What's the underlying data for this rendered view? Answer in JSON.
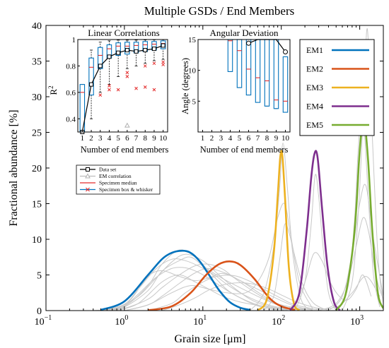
{
  "chart_data": [
    {
      "id": "main",
      "type": "line",
      "title": "Multiple GSDs / End Members",
      "xlabel": "Grain size [μm]",
      "ylabel": "Fractional abundance [%]",
      "xscale": "log",
      "xlim": [
        0.1,
        2000
      ],
      "ylim": [
        0,
        40
      ],
      "x_ticks": [
        {
          "value": 0.1,
          "base": "10",
          "exp": "−1"
        },
        {
          "value": 1,
          "base": "10",
          "exp": "0"
        },
        {
          "value": 10,
          "base": "10",
          "exp": "1"
        },
        {
          "value": 100,
          "base": "10",
          "exp": "2"
        },
        {
          "value": 1000,
          "base": "10",
          "exp": "3"
        }
      ],
      "y_ticks": [
        "0",
        "5",
        "10",
        "15",
        "20",
        "25",
        "30",
        "35",
        "40"
      ],
      "grid": false,
      "legend": {
        "position": "top-right",
        "entries": [
          "EM1",
          "EM2",
          "EM3",
          "EM4",
          "EM5"
        ]
      },
      "series": [
        {
          "name": "EM1",
          "color": "#0072bd",
          "x": [
            0.5,
            1,
            2,
            3,
            4,
            5.5,
            7,
            9,
            12,
            16,
            22,
            30,
            40
          ],
          "y": [
            0.1,
            1.3,
            5.0,
            7.2,
            8.1,
            8.4,
            8.1,
            7.0,
            5.0,
            2.9,
            1.2,
            0.4,
            0.1
          ]
        },
        {
          "name": "EM2",
          "color": "#d95319",
          "x": [
            2,
            4,
            7,
            11,
            16,
            22,
            30,
            45,
            70,
            100,
            150
          ],
          "y": [
            0.05,
            0.6,
            2.5,
            5.0,
            6.5,
            6.9,
            6.4,
            4.5,
            1.8,
            0.6,
            0.1
          ]
        },
        {
          "name": "EM3",
          "color": "#edb120",
          "x": [
            50,
            65,
            80,
            90,
            97,
            103,
            112,
            125,
            145,
            170
          ],
          "y": [
            0.05,
            1.5,
            8.0,
            16.0,
            21.5,
            21.8,
            15.5,
            6.0,
            1.0,
            0.05
          ]
        },
        {
          "name": "EM4",
          "color": "#7e2f8e",
          "x": [
            130,
            170,
            210,
            240,
            265,
            290,
            330,
            390,
            470,
            560
          ],
          "y": [
            0.05,
            2.5,
            11.0,
            18.5,
            22.0,
            21.5,
            14.5,
            6.0,
            1.2,
            0.05
          ]
        },
        {
          "name": "EM5",
          "color": "#77ac30",
          "x": [
            500,
            650,
            800,
            900,
            980,
            1060,
            1150,
            1280,
            1450,
            1700,
            2000
          ],
          "y": [
            0.05,
            2.0,
            8.0,
            14.0,
            21.0,
            25.5,
            26.5,
            21.0,
            11.0,
            2.5,
            0.3
          ]
        }
      ],
      "specimens": {
        "color": "#c8c8c8",
        "lines": [
          {
            "x": [
              0.5,
              1,
              2,
              3,
              5,
              8,
              12,
              20,
              30,
              50,
              80,
              120
            ],
            "y": [
              0.0,
              0.6,
              3.5,
              6.5,
              8.5,
              7.5,
              5.5,
              3.0,
              1.8,
              0.8,
              0.3,
              0.1
            ]
          },
          {
            "x": [
              0.4,
              0.8,
              1.5,
              2.5,
              4,
              6,
              10,
              15,
              25,
              40,
              60,
              100,
              150
            ],
            "y": [
              0.0,
              0.4,
              2.0,
              4.5,
              6.8,
              7.9,
              7.0,
              5.3,
              3.2,
              1.6,
              0.8,
              0.3,
              0.1
            ]
          },
          {
            "x": [
              0.6,
              1,
              2,
              3,
              5,
              7,
              10,
              15,
              20,
              30,
              50,
              80,
              120,
              200
            ],
            "y": [
              0.0,
              0.5,
              2.8,
              5.5,
              7.0,
              7.5,
              6.3,
              5.0,
              4.2,
              3.2,
              2.0,
              1.0,
              0.4,
              0.1
            ]
          },
          {
            "x": [
              0.5,
              1,
              1.5,
              2.5,
              4,
              6,
              9,
              14,
              22,
              35,
              60,
              100,
              200
            ],
            "y": [
              0.0,
              0.9,
              3.0,
              5.8,
              7.2,
              7.0,
              6.2,
              5.0,
              3.4,
              2.1,
              1.0,
              0.4,
              0.1
            ]
          },
          {
            "x": [
              0.7,
              1,
              2,
              3,
              5,
              8,
              12,
              18,
              25,
              40,
              70,
              100,
              150,
              250
            ],
            "y": [
              0.0,
              0.3,
              1.6,
              3.2,
              5.0,
              6.3,
              6.5,
              5.8,
              4.6,
              3.0,
              1.4,
              0.8,
              0.4,
              0.1
            ]
          },
          {
            "x": [
              0.9,
              1.3,
              2,
              3,
              5,
              8,
              12,
              18,
              30,
              50,
              80,
              130
            ],
            "y": [
              0.0,
              2.0,
              4.8,
              5.6,
              4.8,
              4.2,
              4.6,
              5.2,
              4.2,
              2.6,
              1.2,
              0.3
            ]
          },
          {
            "x": [
              1,
              2,
              3,
              5,
              8,
              12,
              20,
              30,
              50,
              70,
              100,
              150,
              250
            ],
            "y": [
              0.0,
              0.8,
              2.0,
              3.8,
              5.3,
              5.9,
              5.2,
              4.2,
              3.0,
              2.2,
              1.4,
              0.6,
              0.1
            ]
          },
          {
            "x": [
              2,
              4,
              6,
              10,
              15,
              25,
              40,
              60,
              100,
              150,
              300
            ],
            "y": [
              0.0,
              1.0,
              2.5,
              4.0,
              4.8,
              4.9,
              4.1,
              3.0,
              1.7,
              0.8,
              0.1
            ]
          },
          {
            "x": [
              0.6,
              1,
              1.5,
              2.5,
              4,
              6,
              9,
              14,
              22,
              35,
              55,
              90
            ],
            "y": [
              0.0,
              0.7,
              2.3,
              4.6,
              5.9,
              6.0,
              5.3,
              4.0,
              2.6,
              1.4,
              0.5,
              0.1
            ]
          },
          {
            "x": [
              3,
              5,
              8,
              12,
              18,
              28,
              45,
              70,
              100,
              150,
              250,
              400
            ],
            "y": [
              0.0,
              0.8,
              1.8,
              2.9,
              3.6,
              3.9,
              3.7,
              3.0,
              2.2,
              1.3,
              0.5,
              0.1
            ]
          },
          {
            "x": [
              0.8,
              1.5,
              3,
              5,
              8,
              12,
              18,
              30,
              60,
              100,
              200,
              500,
              800,
              1200,
              1800
            ],
            "y": [
              0.0,
              1.0,
              4.0,
              5.0,
              4.0,
              3.0,
              2.0,
              1.2,
              0.6,
              0.3,
              0.2,
              0.5,
              2.5,
              4.8,
              2.0
            ]
          },
          {
            "x": [
              1,
              2,
              4,
              7,
              12,
              20,
              35,
              50,
              70,
              90,
              110,
              130,
              170,
              250
            ],
            "y": [
              0.0,
              0.8,
              2.5,
              3.5,
              3.0,
              2.5,
              2.5,
              4.0,
              7.5,
              13.0,
              15.0,
              11.0,
              4.0,
              0.3
            ]
          },
          {
            "x": [
              40,
              60,
              80,
              95,
              105,
              120,
              140,
              180,
              250
            ],
            "y": [
              0.0,
              2.5,
              9.0,
              17.0,
              23.5,
              17.0,
              8.0,
              1.5,
              0.0
            ]
          },
          {
            "x": [
              60,
              80,
              95,
              110,
              125,
              150,
              190,
              260,
              400
            ],
            "y": [
              0.0,
              2.0,
              7.0,
              12.0,
              11.0,
              7.5,
              3.5,
              1.0,
              0.0
            ]
          },
          {
            "x": [
              150,
              200,
              240,
              270,
              300,
              340,
              400,
              500
            ],
            "y": [
              0.0,
              4.0,
              12.0,
              19.0,
              16.0,
              9.0,
              2.5,
              0.0
            ]
          },
          {
            "x": [
              100,
              150,
              200,
              260,
              330,
              420,
              550,
              700,
              900,
              1100,
              1400
            ],
            "y": [
              0.0,
              1.0,
              4.0,
              8.0,
              7.0,
              4.0,
              2.0,
              1.5,
              3.0,
              5.0,
              2.0
            ]
          },
          {
            "x": [
              500,
              700,
              850,
              950,
              1050,
              1150,
              1300,
              1500,
              1800
            ],
            "y": [
              0.0,
              3.0,
              12.0,
              22.0,
              28.0,
              25.0,
              15.0,
              5.0,
              0.5
            ]
          },
          {
            "x": [
              600,
              800,
              950,
              1050,
              1150,
              1250,
              1400,
              1700,
              2000
            ],
            "y": [
              0.0,
              4.0,
              13.0,
              22.0,
              32.0,
              39.5,
              28.0,
              8.0,
              1.0
            ]
          },
          {
            "x": [
              400,
              600,
              800,
              1000,
              1200,
              1500,
              2000
            ],
            "y": [
              0.0,
              2.0,
              8.0,
              15.0,
              17.5,
              10.0,
              2.0
            ]
          },
          {
            "x": [
              300,
              500,
              700,
              900,
              1100,
              1300,
              1600,
              2000
            ],
            "y": [
              0.0,
              1.0,
              4.0,
              9.0,
              13.0,
              11.0,
              5.0,
              1.5
            ]
          }
        ]
      },
      "inset_legend": [
        {
          "label": "Data set",
          "style": "data"
        },
        {
          "label": "EM correlation",
          "style": "emcorr"
        },
        {
          "label": "Specimen median",
          "style": "median"
        },
        {
          "label": "Specimen box & whisker",
          "style": "box"
        }
      ]
    },
    {
      "id": "linear-correlations",
      "type": "box",
      "title": "Linear Correlations",
      "xlabel": "Number of end members",
      "ylabel": "R²",
      "ylabel_base": "R",
      "ylabel_sup": "2",
      "xlim": [
        0.5,
        10.5
      ],
      "ylim": [
        0.3,
        1.0
      ],
      "x_ticks": [
        1,
        2,
        3,
        4,
        5,
        6,
        7,
        8,
        9,
        10
      ],
      "y_ticks": [
        {
          "value": 0.4,
          "label": "0.4"
        },
        {
          "value": 0.6,
          "label": "0.6"
        },
        {
          "value": 0.8,
          "label": "0.8"
        },
        {
          "value": 1.0,
          "label": "1"
        }
      ],
      "boxes": [
        {
          "n": 1,
          "q1": 0.28,
          "median": 0.6,
          "q3": 0.66,
          "whislo": 0.28,
          "whishi": 0.66
        },
        {
          "n": 2,
          "q1": 0.58,
          "median": 0.79,
          "q3": 0.86,
          "whislo": 0.4,
          "whishi": 0.92
        },
        {
          "n": 3,
          "q1": 0.78,
          "median": 0.88,
          "q3": 0.94,
          "whislo": 0.6,
          "whishi": 0.98
        },
        {
          "n": 4,
          "q1": 0.86,
          "median": 0.93,
          "q3": 0.96,
          "whislo": 0.66,
          "whishi": 0.99
        },
        {
          "n": 5,
          "q1": 0.88,
          "median": 0.95,
          "q3": 0.975,
          "whislo": 0.72,
          "whishi": 0.995
        },
        {
          "n": 6,
          "q1": 0.89,
          "median": 0.95,
          "q3": 0.98,
          "whislo": 0.78,
          "whishi": 0.995
        },
        {
          "n": 7,
          "q1": 0.9,
          "median": 0.955,
          "q3": 0.98,
          "whislo": 0.8,
          "whishi": 0.995
        },
        {
          "n": 8,
          "q1": 0.91,
          "median": 0.96,
          "q3": 0.985,
          "whislo": 0.82,
          "whishi": 0.997
        },
        {
          "n": 9,
          "q1": 0.92,
          "median": 0.965,
          "q3": 0.985,
          "whislo": 0.84,
          "whishi": 0.998
        },
        {
          "n": 10,
          "q1": 0.93,
          "median": 0.97,
          "q3": 0.99,
          "whislo": 0.85,
          "whishi": 0.999
        }
      ],
      "outliers": [
        {
          "x": 3,
          "y": 0.58
        },
        {
          "x": 4,
          "y": 0.65
        },
        {
          "x": 4,
          "y": 0.62
        },
        {
          "x": 5,
          "y": 0.62
        },
        {
          "x": 6,
          "y": 0.75
        },
        {
          "x": 6,
          "y": 0.72
        },
        {
          "x": 7,
          "y": 0.63
        },
        {
          "x": 8,
          "y": 0.64
        },
        {
          "x": 8,
          "y": 0.8
        },
        {
          "x": 9,
          "y": 0.62
        },
        {
          "x": 9,
          "y": 0.82
        },
        {
          "x": 10,
          "y": 0.83
        },
        {
          "x": 10,
          "y": 0.81
        }
      ],
      "data_set": {
        "x": [
          1,
          2,
          3,
          4,
          5,
          6,
          7,
          8,
          9,
          10
        ],
        "y": [
          0.3,
          0.66,
          0.8,
          0.87,
          0.9,
          0.92,
          0.91,
          0.92,
          0.93,
          0.955
        ]
      },
      "em_correlation": {
        "x": 6,
        "y": 0.35
      }
    },
    {
      "id": "angular-deviation",
      "type": "box",
      "title": "Angular Deviation",
      "xlabel": "Number of end members",
      "ylabel": "Angle (degrees)",
      "xlim": [
        0.5,
        10.5
      ],
      "ylim": [
        0,
        15
      ],
      "x_ticks": [
        1,
        2,
        3,
        4,
        5,
        6,
        7,
        8,
        9,
        10
      ],
      "y_ticks": [
        {
          "value": 5,
          "label": "5"
        },
        {
          "value": 10,
          "label": "10"
        },
        {
          "value": 15,
          "label": "15"
        }
      ],
      "boxes": [
        {
          "n": 4,
          "q1": 9.8,
          "median": 14.8,
          "q3": 16,
          "whislo": 9.8,
          "whishi": 16
        },
        {
          "n": 5,
          "q1": 7.2,
          "median": 13.2,
          "q3": 16,
          "whislo": 7.2,
          "whishi": 16
        },
        {
          "n": 6,
          "q1": 6.0,
          "median": 10.2,
          "q3": 16,
          "whislo": 6.0,
          "whishi": 16
        },
        {
          "n": 7,
          "q1": 4.8,
          "median": 8.8,
          "q3": 16,
          "whislo": 4.8,
          "whishi": 16
        },
        {
          "n": 8,
          "q1": 4.2,
          "median": 8.3,
          "q3": 16,
          "whislo": 4.2,
          "whishi": 16
        },
        {
          "n": 9,
          "q1": 3.8,
          "median": 5.2,
          "q3": 15.5,
          "whislo": 3.8,
          "whishi": 15.5
        },
        {
          "n": 10,
          "q1": 3.2,
          "median": 5.0,
          "q3": 12.2,
          "whislo": 3.2,
          "whishi": 12.2
        }
      ],
      "data_set": {
        "x": [
          6,
          7,
          8,
          9,
          10
        ],
        "y": [
          14.4,
          16,
          16,
          16,
          13.0
        ]
      }
    }
  ]
}
